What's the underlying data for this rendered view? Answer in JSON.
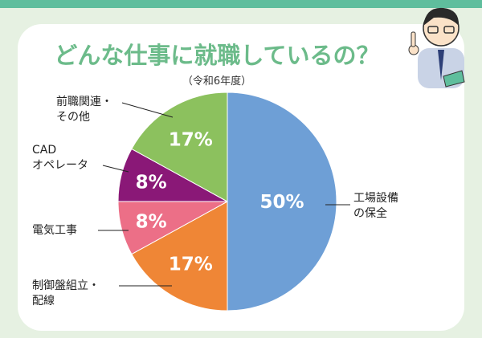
{
  "chart_data": {
    "type": "pie",
    "title": "どんな仕事に就職しているの？",
    "subtitle": "（令和6年度）",
    "categories": [
      "工場設備\nの保全",
      "制御盤組立・\n配線",
      "電気工事",
      "CAD\nオペレータ",
      "前職関連・\nその他"
    ],
    "values": [
      50,
      17,
      8,
      8,
      17
    ],
    "value_labels": [
      "50%",
      "17%",
      "8%",
      "8%",
      "17%"
    ],
    "colors": [
      "#6e9fd6",
      "#ef8636",
      "#ec6f87",
      "#8a1877",
      "#8cc15e"
    ]
  }
}
